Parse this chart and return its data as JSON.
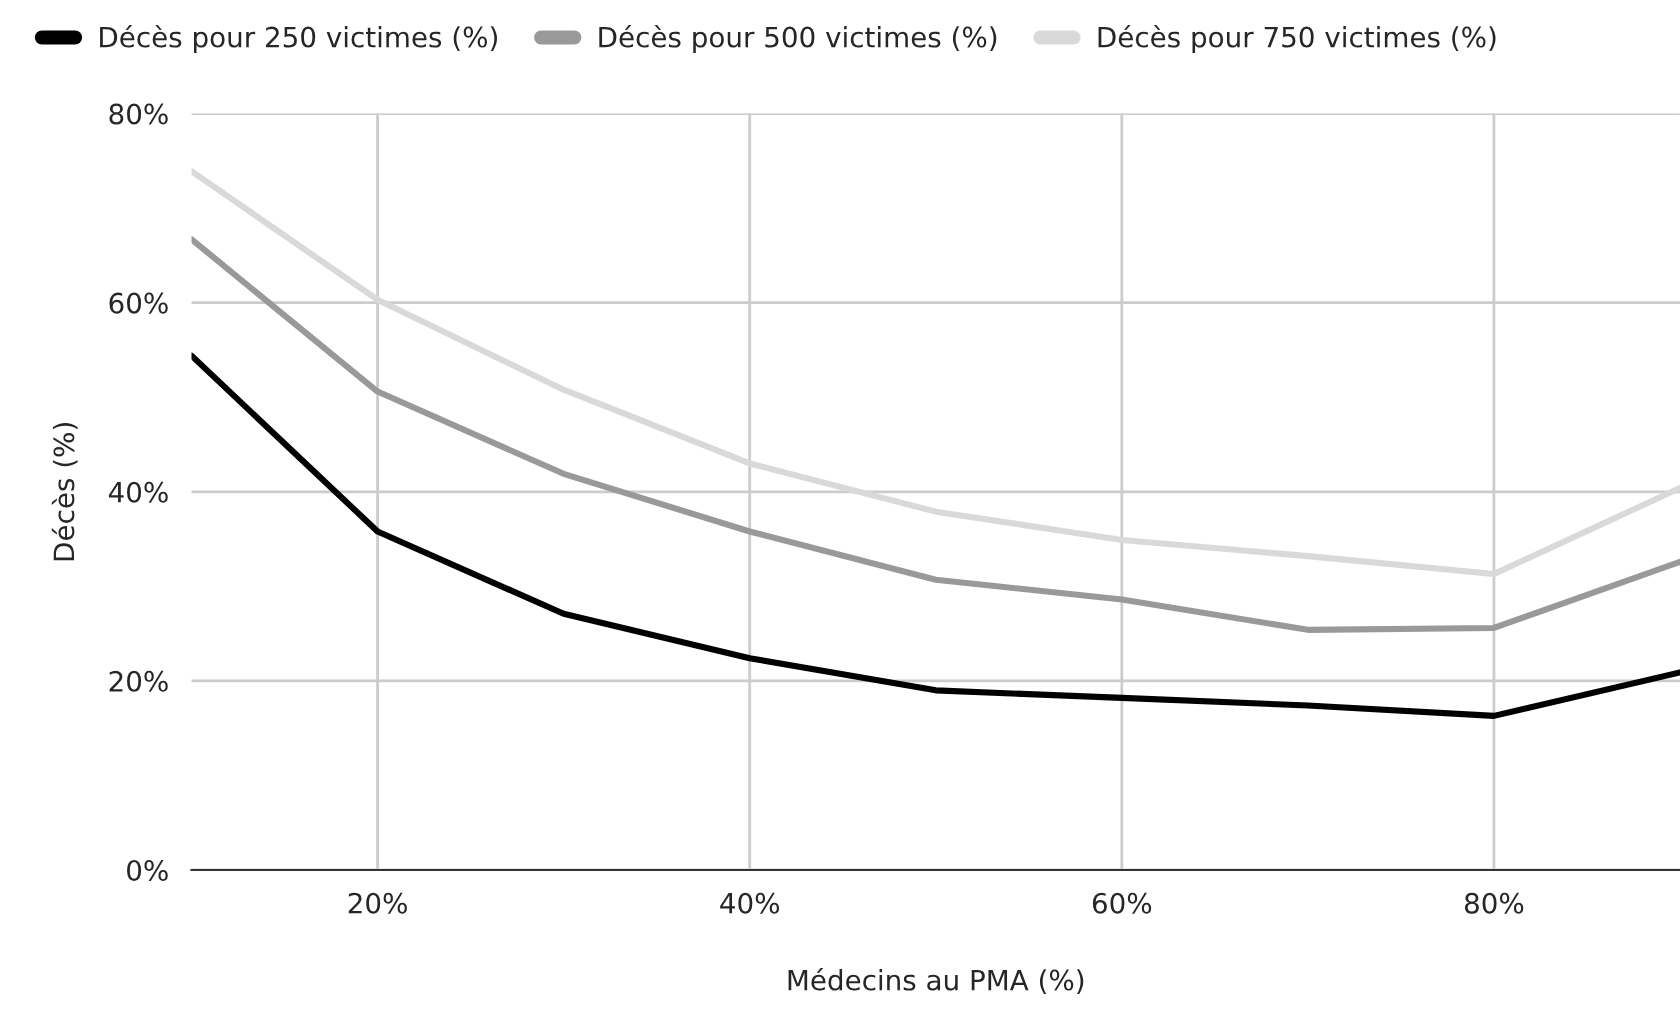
{
  "chart_data": {
    "type": "line",
    "xlabel": "Médecins au PMA (%)",
    "ylabel": "Décès (%)",
    "x": [
      10,
      20,
      30,
      40,
      50,
      60,
      70,
      80,
      90
    ],
    "series": [
      {
        "name": "Décès pour 250 victimes (%)",
        "color": "#000000",
        "values": [
          54.4,
          35.8,
          27.1,
          22.4,
          19.0,
          18.2,
          17.4,
          16.3,
          20.9
        ]
      },
      {
        "name": "Décès pour 500 victimes (%)",
        "color": "#999999",
        "values": [
          66.7,
          50.6,
          41.9,
          35.8,
          30.7,
          28.6,
          25.4,
          25.6,
          32.6
        ]
      },
      {
        "name": "Décès pour 750 victimes (%)",
        "color": "#d9d9d9",
        "values": [
          73.9,
          60.3,
          50.8,
          43.0,
          37.9,
          34.9,
          33.2,
          31.3,
          40.4
        ]
      }
    ],
    "xlim": [
      10,
      90
    ],
    "xticks": [
      {
        "value": 20,
        "label": "20%"
      },
      {
        "value": 40,
        "label": "40%"
      },
      {
        "value": 60,
        "label": "60%"
      },
      {
        "value": 80,
        "label": "80%"
      }
    ],
    "ylim": [
      0,
      80
    ],
    "yticks": [
      {
        "value": 0,
        "label": "0%"
      },
      {
        "value": 20,
        "label": "20%"
      },
      {
        "value": 40,
        "label": "40%"
      },
      {
        "value": 60,
        "label": "60%"
      },
      {
        "value": 80,
        "label": "80%"
      }
    ],
    "grid": true,
    "legend": "top left",
    "marker": "none",
    "line_style": "solid"
  }
}
